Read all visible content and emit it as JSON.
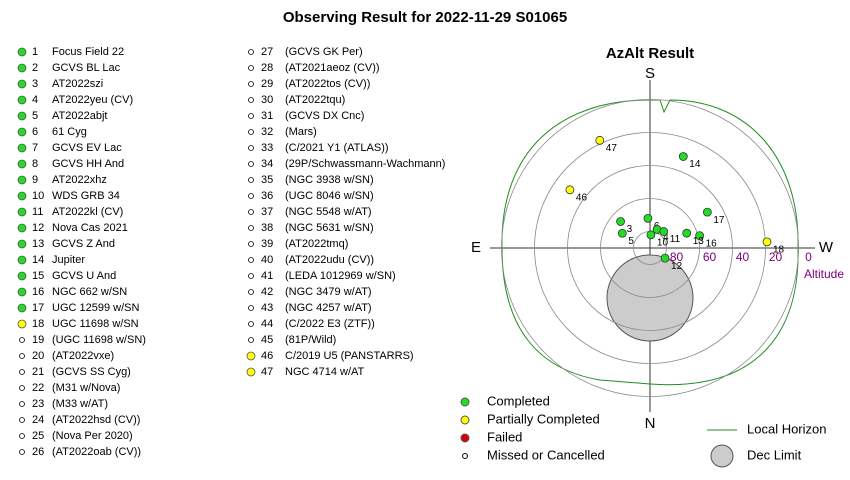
{
  "title": "Observing Result for 2022-11-29 S01065",
  "targets": [
    {
      "id": 1,
      "name": "Focus Field 22",
      "color": "#22dd22"
    },
    {
      "id": 2,
      "name": "GCVS BL Lac",
      "color": "#22dd22"
    },
    {
      "id": 3,
      "name": "AT2022szi",
      "color": "#22dd22"
    },
    {
      "id": 4,
      "name": "AT2022yeu (CV)",
      "color": "#22dd22"
    },
    {
      "id": 5,
      "name": "AT2022abjt",
      "color": "#22dd22"
    },
    {
      "id": 6,
      "name": "61 Cyg",
      "color": "#22dd22"
    },
    {
      "id": 7,
      "name": "GCVS EV Lac",
      "color": "#22dd22"
    },
    {
      "id": 8,
      "name": "GCVS HH And",
      "color": "#22dd22"
    },
    {
      "id": 9,
      "name": "AT2022xhz",
      "color": "#22dd22"
    },
    {
      "id": 10,
      "name": "WDS GRB 34",
      "color": "#22dd22"
    },
    {
      "id": 11,
      "name": "AT2022kl (CV)",
      "color": "#22dd22"
    },
    {
      "id": 12,
      "name": "Nova Cas 2021",
      "color": "#22dd22"
    },
    {
      "id": 13,
      "name": "GCVS Z And",
      "color": "#22dd22"
    },
    {
      "id": 14,
      "name": "Jupiter",
      "color": "#22dd22"
    },
    {
      "id": 15,
      "name": "GCVS U And",
      "color": "#22dd22"
    },
    {
      "id": 16,
      "name": "NGC 662 w/SN",
      "color": "#22dd22"
    },
    {
      "id": 17,
      "name": "UGC 12599 w/SN",
      "color": "#22dd22"
    },
    {
      "id": 18,
      "name": "UGC 11698 w/SN",
      "color": "#ffff00"
    },
    {
      "id": 19,
      "name": "(UGC 11698 w/SN)",
      "color": "#ffffff"
    },
    {
      "id": 20,
      "name": "(AT2022vxe)",
      "color": "#ffffff"
    },
    {
      "id": 21,
      "name": "(GCVS SS Cyg)",
      "color": "#ffffff"
    },
    {
      "id": 22,
      "name": "(M31 w/Nova)",
      "color": "#ffffff"
    },
    {
      "id": 23,
      "name": "(M33 w/AT)",
      "color": "#ffffff"
    },
    {
      "id": 24,
      "name": "(AT2022hsd (CV))",
      "color": "#ffffff"
    },
    {
      "id": 25,
      "name": "(Nova Per 2020)",
      "color": "#ffffff"
    },
    {
      "id": 26,
      "name": "(AT2022oab (CV))",
      "color": "#ffffff"
    },
    {
      "id": 27,
      "name": "(GCVS GK Per)",
      "color": "#ffffff"
    },
    {
      "id": 28,
      "name": "(AT2021aeoz (CV))",
      "color": "#ffffff"
    },
    {
      "id": 29,
      "name": "(AT2022tos (CV))",
      "color": "#ffffff"
    },
    {
      "id": 30,
      "name": "(AT2022tqu)",
      "color": "#ffffff"
    },
    {
      "id": 31,
      "name": "(GCVS DX Cnc)",
      "color": "#ffffff"
    },
    {
      "id": 32,
      "name": "(Mars)",
      "color": "#ffffff"
    },
    {
      "id": 33,
      "name": "(C/2021 Y1 (ATLAS))",
      "color": "#ffffff"
    },
    {
      "id": 34,
      "name": "(29P/Schwassmann-Wachmann)",
      "color": "#ffffff"
    },
    {
      "id": 35,
      "name": "(NGC 3938 w/SN)",
      "color": "#ffffff"
    },
    {
      "id": 36,
      "name": "(UGC 8046 w/SN)",
      "color": "#ffffff"
    },
    {
      "id": 37,
      "name": "(NGC 5548 w/AT)",
      "color": "#ffffff"
    },
    {
      "id": 38,
      "name": "(NGC 5631 w/SN)",
      "color": "#ffffff"
    },
    {
      "id": 39,
      "name": "(AT2022tmq)",
      "color": "#ffffff"
    },
    {
      "id": 40,
      "name": "(AT2022udu (CV))",
      "color": "#ffffff"
    },
    {
      "id": 41,
      "name": "(LEDA 1012969 w/SN)",
      "color": "#ffffff"
    },
    {
      "id": 42,
      "name": "(NGC 3479 w/AT)",
      "color": "#ffffff"
    },
    {
      "id": 43,
      "name": "(NGC 4257 w/AT)",
      "color": "#ffffff"
    },
    {
      "id": 44,
      "name": "(C/2022 E3 (ZTF))",
      "color": "#ffffff"
    },
    {
      "id": 45,
      "name": "(81P/Wild)",
      "color": "#ffffff"
    },
    {
      "id": 46,
      "name": "C/2019 U5 (PANSTARRS)",
      "color": "#ffff00"
    },
    {
      "id": 47,
      "name": "NGC 4714 w/AT",
      "color": "#ffff00"
    }
  ],
  "chart_data": {
    "type": "polar-scatter",
    "title": "AzAlt Result",
    "directions": {
      "top": "S",
      "right": "W",
      "bottom": "N",
      "left": "E"
    },
    "radial_label": "Altitude",
    "rlim": [
      90,
      0
    ],
    "rticks": [
      80,
      60,
      40,
      20,
      0
    ],
    "points": [
      {
        "label": 47,
        "az": 155,
        "alt": 18
      },
      {
        "label": 46,
        "az": 126,
        "alt": 30
      },
      {
        "label": 14,
        "az": 200,
        "alt": 31
      },
      {
        "label": 17,
        "az": 238,
        "alt": 49
      },
      {
        "label": 18,
        "az": 267,
        "alt": 19
      },
      {
        "label": 16,
        "az": 256,
        "alt": 59
      },
      {
        "label": 13,
        "az": 248,
        "alt": 66
      },
      {
        "label": 12,
        "az": 304,
        "alt": 79
      },
      {
        "label": 3,
        "az": 132,
        "alt": 66
      },
      {
        "label": 5,
        "az": 118,
        "alt": 71
      },
      {
        "label": 6,
        "az": 176,
        "alt": 72
      },
      {
        "label": 4,
        "az": 201,
        "alt": 78
      },
      {
        "label": 10,
        "az": 184,
        "alt": 82
      },
      {
        "label": 11,
        "az": 220,
        "alt": 77
      }
    ],
    "legend": [
      {
        "name": "Completed",
        "color": "#22dd22"
      },
      {
        "name": "Partially Completed",
        "color": "#ffff00"
      },
      {
        "name": "Failed",
        "color": "#dd0000"
      },
      {
        "name": "Missed or Cancelled",
        "color": "#ffffff"
      }
    ],
    "horizon": {
      "name": "Local Horizon",
      "color": "#228b22"
    },
    "dec_limit": {
      "name": "Dec Limit",
      "color": "#cccccc"
    }
  }
}
